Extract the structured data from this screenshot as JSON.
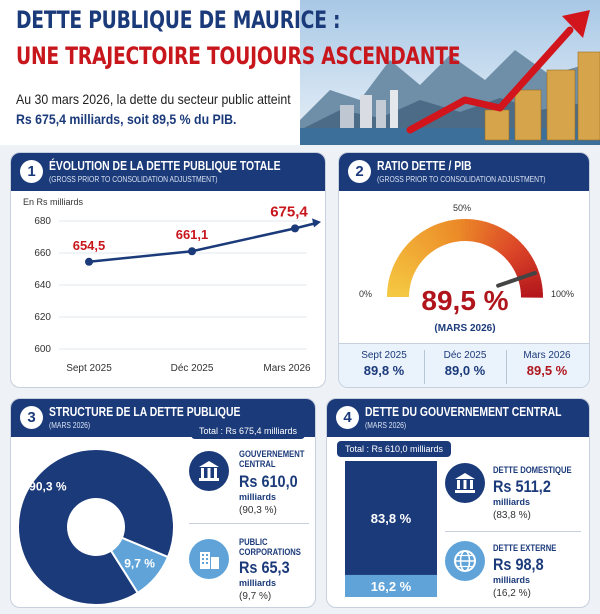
{
  "header": {
    "title_line1": "DETTE PUBLIQUE DE MAURICE :",
    "title_line2": "UNE TRAJECTOIRE TOUJOURS ASCENDANTE",
    "intro_line1": "Au 30 mars 2026, la dette du secteur public atteint",
    "intro_line2": "Rs 675,4 milliards, soit 89,5 % du PIB."
  },
  "colors": {
    "navy": "#1b3a7a",
    "red": "#c8161d",
    "light_blue": "#5fa3d9",
    "pale_blue": "#eaf2fb"
  },
  "panel1": {
    "number": "1",
    "title": "ÉVOLUTION DE LA DETTE PUBLIQUE TOTALE",
    "subtitle": "(GROSS PRIOR TO CONSOLIDATION ADJUSTMENT)",
    "unit": "En Rs milliards"
  },
  "panel2": {
    "number": "2",
    "title": "RATIO DETTE / PIB",
    "subtitle": "(GROSS PRIOR TO CONSOLIDATION ADJUSTMENT)",
    "gauge_min_label": "0%",
    "gauge_mid_label": "50%",
    "gauge_max_label": "100%",
    "value_label": "89,5 %",
    "value_date": "(MARS 2026)",
    "history": [
      {
        "date": "Sept 2025",
        "value": "89,8 %"
      },
      {
        "date": "Déc 2025",
        "value": "89,0 %"
      },
      {
        "date": "Mars 2026",
        "value": "89,5 %"
      }
    ]
  },
  "panel3": {
    "number": "3",
    "title": "STRUCTURE DE LA DETTE PUBLIQUE",
    "subtitle": "(MARS 2026)",
    "total": "Total : Rs 675,4 milliards",
    "categories": [
      {
        "label_line1": "GOUVERNEMENT",
        "label_line2": "CENTRAL",
        "amount": "Rs 610,0",
        "unit": "milliards",
        "pct": "(90,3 %)",
        "icon": "government-building-icon"
      },
      {
        "label_line1": "PUBLIC",
        "label_line2": "CORPORATIONS",
        "amount": "Rs 65,3",
        "unit": "milliards",
        "pct": "(9,7 %)",
        "icon": "office-buildings-icon"
      }
    ]
  },
  "panel4": {
    "number": "4",
    "title": "DETTE DU GOUVERNEMENT CENTRAL",
    "subtitle": "(MARS 2026)",
    "total": "Total : Rs 610,0 milliards",
    "categories": [
      {
        "label": "DETTE DOMESTIQUE",
        "amount": "Rs 511,2",
        "unit": "milliards",
        "pct": "(83,8 %)",
        "icon": "bank-icon"
      },
      {
        "label": "DETTE EXTERNE",
        "amount": "Rs 98,8",
        "unit": "milliards",
        "pct": "(16,2 %)",
        "icon": "globe-icon"
      }
    ]
  },
  "chart_data": [
    {
      "type": "line",
      "title": "ÉVOLUTION DE LA DETTE PUBLIQUE TOTALE",
      "ylabel": "En Rs milliards",
      "categories": [
        "Sept 2025",
        "Déc 2025",
        "Mars 2026"
      ],
      "values": [
        654.5,
        661.1,
        675.4
      ],
      "value_labels": [
        "654,5",
        "661,1",
        "675,4"
      ],
      "ylim": [
        600,
        680
      ],
      "yticks": [
        600,
        620,
        640,
        660,
        680
      ],
      "grid": true
    },
    {
      "type": "gauge",
      "title": "RATIO DETTE / PIB",
      "value": 89.5,
      "range": [
        0,
        100
      ]
    },
    {
      "type": "pie",
      "title": "STRUCTURE DE LA DETTE PUBLIQUE",
      "categories": [
        "GOUVERNEMENT CENTRAL",
        "PUBLIC CORPORATIONS"
      ],
      "values": [
        90.3,
        9.7
      ],
      "value_labels": [
        "90,3 %",
        "9,7 %"
      ]
    },
    {
      "type": "bar",
      "title": "DETTE DU GOUVERNEMENT CENTRAL",
      "categories": [
        "DETTE DOMESTIQUE",
        "DETTE EXTERNE"
      ],
      "values": [
        83.8,
        16.2
      ],
      "value_labels": [
        "83,8 %",
        "16,2 %"
      ]
    }
  ]
}
